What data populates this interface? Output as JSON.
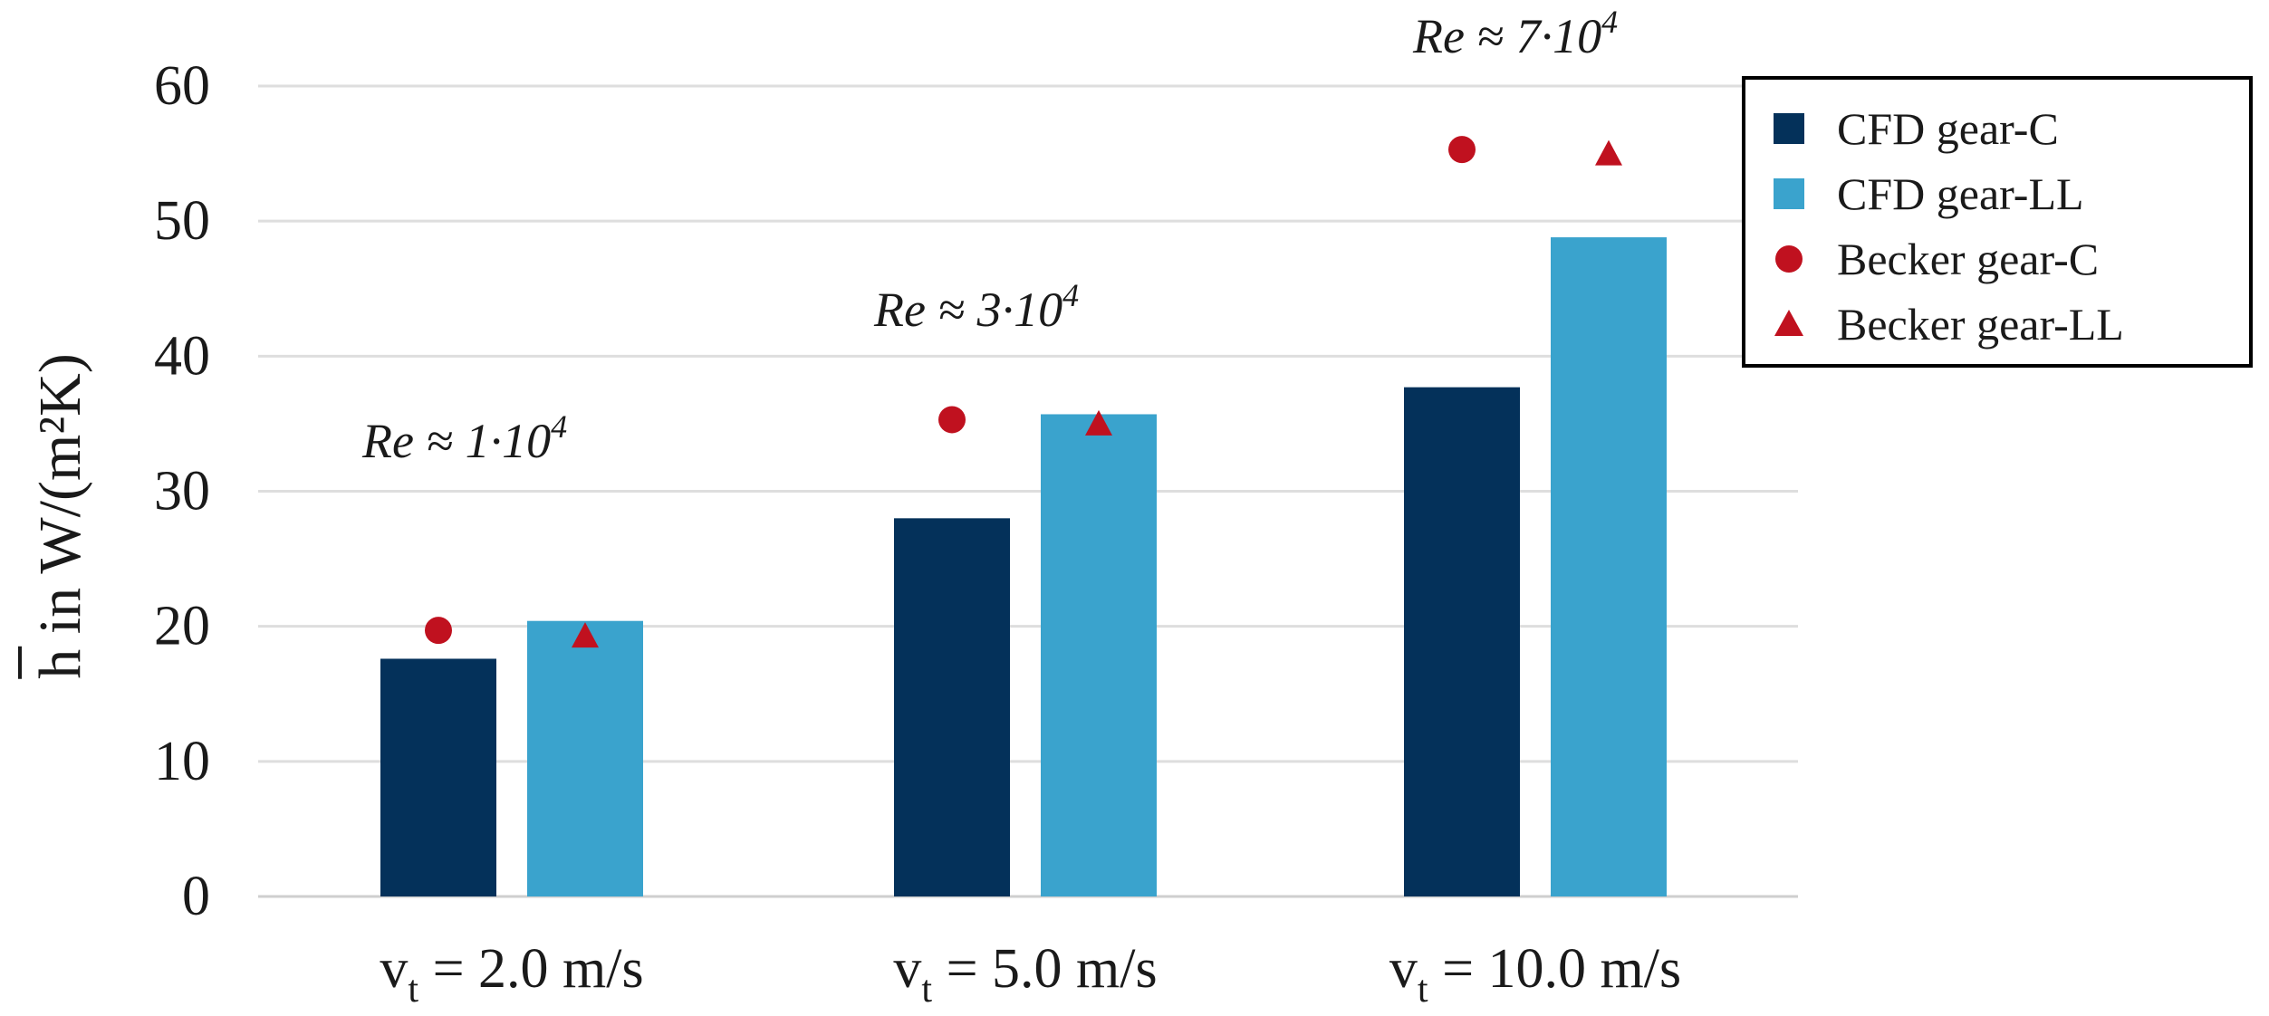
{
  "chart_data": {
    "type": "bar",
    "title": "",
    "xlabel": "",
    "ylabel": "h in W/(m²K)",
    "ylim": [
      0,
      60
    ],
    "yticks": [
      "0",
      "10",
      "20",
      "30",
      "40",
      "50",
      "60"
    ],
    "ytick_values": [
      0,
      10,
      20,
      30,
      40,
      50,
      60
    ],
    "grid": true,
    "categories": [
      {
        "main": "v",
        "sub": "t",
        "rest": " = 2.0 m/s"
      },
      {
        "main": "v",
        "sub": "t",
        "rest": " = 5.0 m/s"
      },
      {
        "main": "v",
        "sub": "t",
        "rest": " = 10.0 m/s"
      }
    ],
    "series": [
      {
        "name": "CFD gear-C",
        "kind": "bar",
        "color": "#04315a",
        "values": [
          17.6,
          28.0,
          37.7
        ]
      },
      {
        "name": "CFD gear-LL",
        "kind": "bar",
        "color": "#3aa3cd",
        "values": [
          20.4,
          35.7,
          48.8
        ]
      },
      {
        "name": "Becker gear-C",
        "kind": "circle",
        "color": "#c0111f",
        "values": [
          19.7,
          35.3,
          55.3
        ]
      },
      {
        "name": "Becker gear-LL",
        "kind": "triangle",
        "color": "#c0111f",
        "values": [
          19.3,
          35.0,
          55.0
        ]
      }
    ],
    "annotations": [
      {
        "text": "Re ≈ 1·10",
        "sup": "4"
      },
      {
        "text": "Re ≈ 3·10",
        "sup": "4"
      },
      {
        "text": "Re ≈ 7·10",
        "sup": "4"
      }
    ],
    "legend_position": "top-right"
  }
}
